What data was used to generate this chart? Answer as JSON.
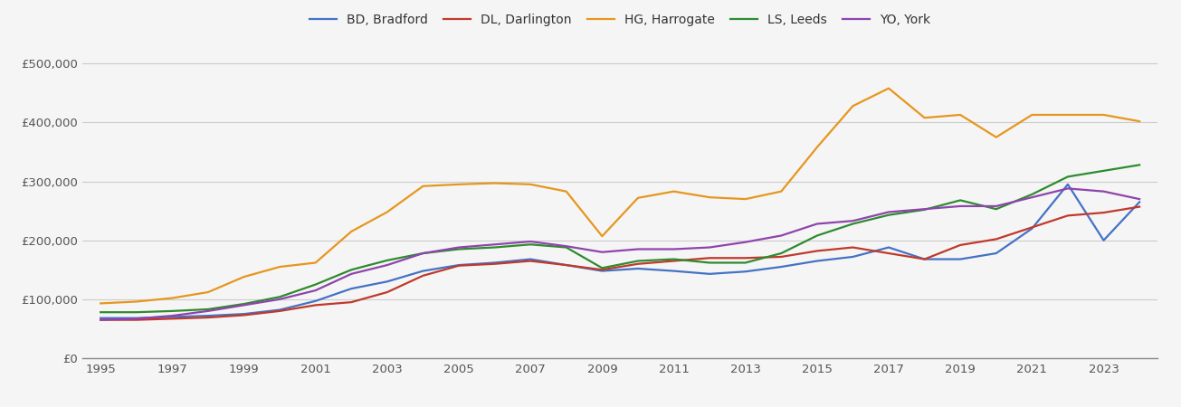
{
  "years": [
    1995,
    1996,
    1997,
    1998,
    1999,
    2000,
    2001,
    2002,
    2003,
    2004,
    2005,
    2006,
    2007,
    2008,
    2009,
    2010,
    2011,
    2012,
    2013,
    2014,
    2015,
    2016,
    2017,
    2018,
    2019,
    2020,
    2021,
    2022,
    2023,
    2024
  ],
  "BD_Bradford": [
    68000,
    68000,
    70000,
    72000,
    75000,
    82000,
    97000,
    118000,
    130000,
    148000,
    158000,
    162000,
    168000,
    158000,
    148000,
    152000,
    148000,
    143000,
    147000,
    155000,
    165000,
    172000,
    188000,
    168000,
    168000,
    178000,
    220000,
    295000,
    200000,
    265000
  ],
  "DL_Darlington": [
    65000,
    65000,
    67000,
    69000,
    73000,
    80000,
    90000,
    95000,
    112000,
    140000,
    157000,
    160000,
    165000,
    158000,
    150000,
    160000,
    165000,
    170000,
    170000,
    172000,
    182000,
    188000,
    178000,
    168000,
    192000,
    202000,
    222000,
    242000,
    247000,
    257000
  ],
  "HG_Harrogate": [
    93000,
    96000,
    102000,
    112000,
    138000,
    155000,
    162000,
    215000,
    248000,
    292000,
    295000,
    297000,
    295000,
    283000,
    207000,
    272000,
    283000,
    273000,
    270000,
    283000,
    358000,
    428000,
    458000,
    408000,
    413000,
    375000,
    413000,
    413000,
    413000,
    402000
  ],
  "LS_Leeds": [
    78000,
    78000,
    80000,
    83000,
    92000,
    104000,
    125000,
    150000,
    166000,
    178000,
    185000,
    188000,
    193000,
    188000,
    153000,
    165000,
    168000,
    162000,
    162000,
    178000,
    208000,
    228000,
    243000,
    252000,
    268000,
    253000,
    278000,
    308000,
    318000,
    328000
  ],
  "YO_York": [
    65000,
    67000,
    72000,
    80000,
    90000,
    100000,
    115000,
    143000,
    158000,
    178000,
    188000,
    193000,
    198000,
    190000,
    180000,
    185000,
    185000,
    188000,
    197000,
    208000,
    228000,
    233000,
    248000,
    253000,
    258000,
    258000,
    273000,
    288000,
    283000,
    270000
  ],
  "colors": {
    "BD_Bradford": "#4472c4",
    "DL_Darlington": "#c0392b",
    "HG_Harrogate": "#e6961e",
    "LS_Leeds": "#2e8b2e",
    "YO_York": "#8e44ad"
  },
  "labels": {
    "BD_Bradford": "BD, Bradford",
    "DL_Darlington": "DL, Darlington",
    "HG_Harrogate": "HG, Harrogate",
    "LS_Leeds": "LS, Leeds",
    "YO_York": "YO, York"
  },
  "series_order": [
    "BD_Bradford",
    "DL_Darlington",
    "HG_Harrogate",
    "LS_Leeds",
    "YO_York"
  ],
  "ylim": [
    0,
    525000
  ],
  "yticks": [
    0,
    100000,
    200000,
    300000,
    400000,
    500000
  ],
  "xlim": [
    1994.5,
    2024.5
  ],
  "xticks": [
    1995,
    1997,
    1999,
    2001,
    2003,
    2005,
    2007,
    2009,
    2011,
    2013,
    2015,
    2017,
    2019,
    2021,
    2023
  ],
  "background_color": "#f5f5f5",
  "plot_bg_color": "#f5f5f5",
  "grid_color": "#cccccc",
  "linewidth": 1.6,
  "legend_fontsize": 10,
  "tick_fontsize": 9.5,
  "tick_color": "#555555"
}
